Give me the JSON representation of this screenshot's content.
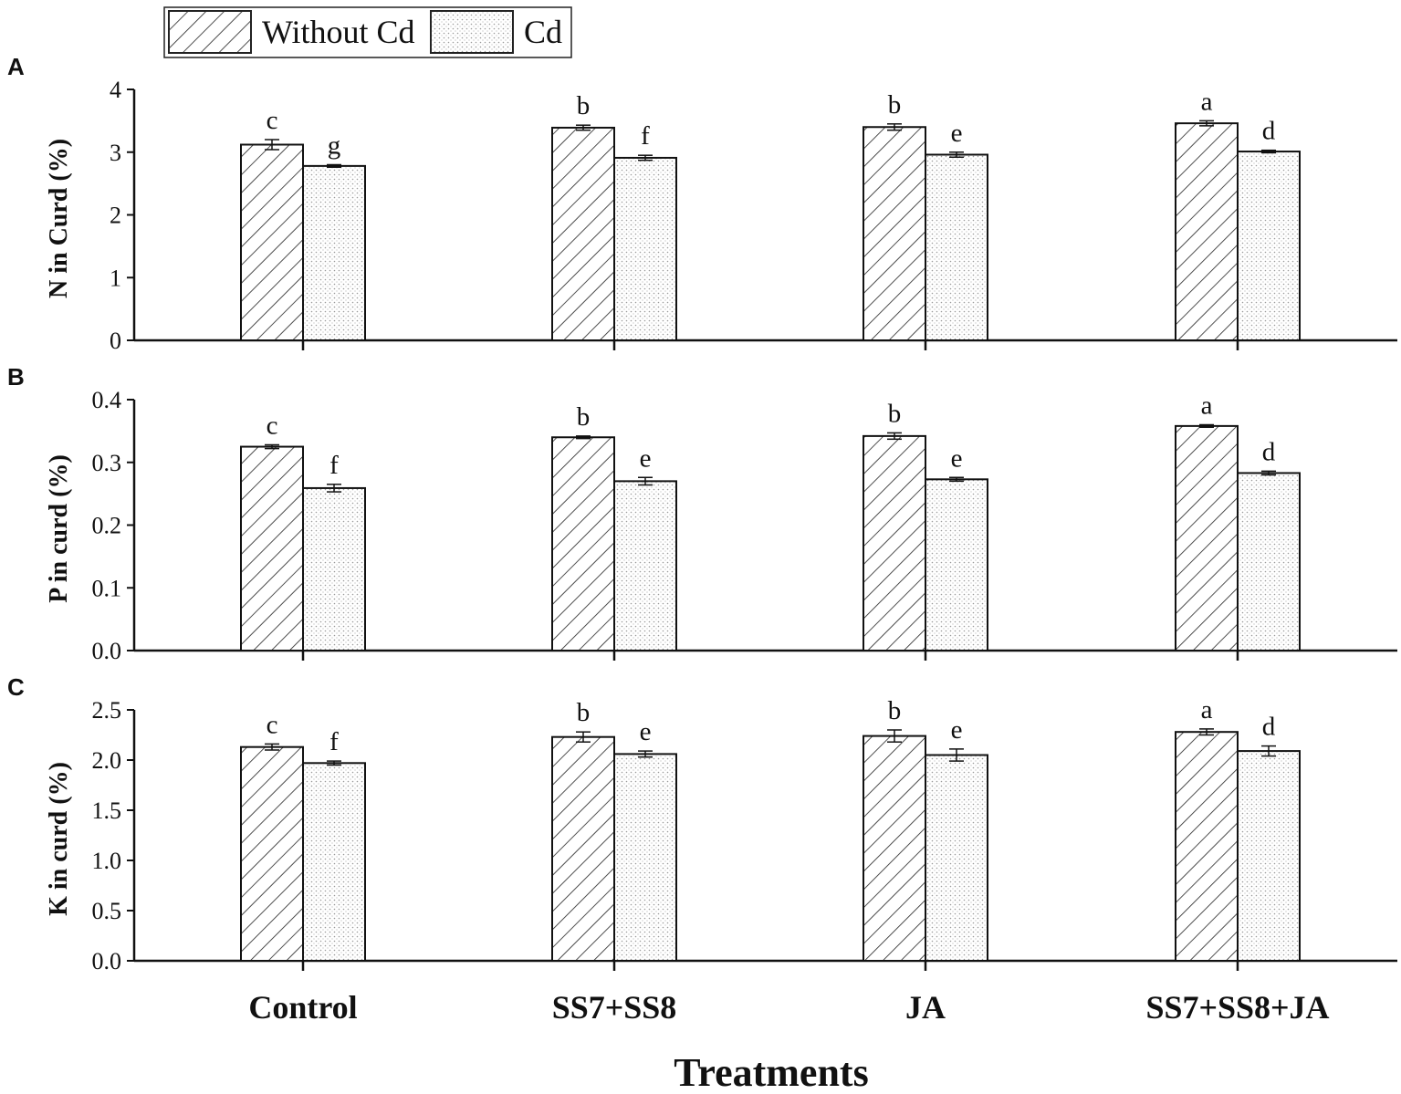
{
  "chart_data": [
    {
      "panel": "A",
      "type": "bar",
      "ylabel": "N in Curd (%)",
      "ylim": [
        0,
        4
      ],
      "yticks": [
        "0",
        "1",
        "2",
        "3",
        "4"
      ],
      "categories": [
        "Control",
        "SS7+SS8",
        "JA",
        "SS7+SS8+JA"
      ],
      "series": [
        {
          "name": "Without Cd",
          "values": [
            3.12,
            3.39,
            3.4,
            3.46
          ],
          "errors": [
            0.08,
            0.04,
            0.05,
            0.04
          ],
          "letters": [
            "c",
            "b",
            "b",
            "a"
          ]
        },
        {
          "name": "Cd",
          "values": [
            2.78,
            2.91,
            2.96,
            3.01
          ],
          "errors": [
            0.02,
            0.04,
            0.04,
            0.02
          ],
          "letters": [
            "g",
            "f",
            "e",
            "d"
          ]
        }
      ]
    },
    {
      "panel": "B",
      "type": "bar",
      "ylabel": "P in curd (%)",
      "ylim": [
        0,
        0.4
      ],
      "yticks": [
        "0.0",
        "0.1",
        "0.2",
        "0.3",
        "0.4"
      ],
      "categories": [
        "Control",
        "SS7+SS8",
        "JA",
        "SS7+SS8+JA"
      ],
      "series": [
        {
          "name": "Without Cd",
          "values": [
            0.325,
            0.34,
            0.342,
            0.358
          ],
          "errors": [
            0.003,
            0.002,
            0.005,
            0.002
          ],
          "letters": [
            "c",
            "b",
            "b",
            "a"
          ]
        },
        {
          "name": "Cd",
          "values": [
            0.259,
            0.27,
            0.273,
            0.283
          ],
          "errors": [
            0.006,
            0.006,
            0.003,
            0.003
          ],
          "letters": [
            "f",
            "e",
            "e",
            "d"
          ]
        }
      ]
    },
    {
      "panel": "C",
      "type": "bar",
      "ylabel": "K in curd (%)",
      "ylim": [
        0,
        2.5
      ],
      "yticks": [
        "0.0",
        "0.5",
        "1.0",
        "1.5",
        "2.0",
        "2.5"
      ],
      "categories": [
        "Control",
        "SS7+SS8",
        "JA",
        "SS7+SS8+JA"
      ],
      "series": [
        {
          "name": "Without Cd",
          "values": [
            2.13,
            2.23,
            2.24,
            2.28
          ],
          "errors": [
            0.03,
            0.05,
            0.06,
            0.03
          ],
          "letters": [
            "c",
            "b",
            "b",
            "a"
          ]
        },
        {
          "name": "Cd",
          "values": [
            1.97,
            2.06,
            2.05,
            2.09
          ],
          "errors": [
            0.02,
            0.03,
            0.06,
            0.05
          ],
          "letters": [
            "f",
            "e",
            "e",
            "d"
          ]
        }
      ]
    }
  ],
  "legend": {
    "items": [
      "Without Cd",
      "Cd"
    ]
  },
  "xlabel": "Treatments"
}
